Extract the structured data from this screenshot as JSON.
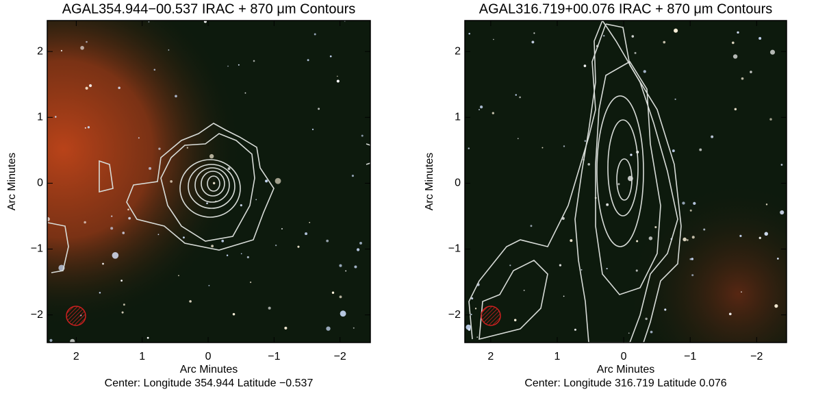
{
  "chart_data": [
    {
      "type": "image",
      "title": "AGAL354.944−00.537 IRAC + 870 μm Contours",
      "xlabel": "Arc Minutes",
      "ylabel": "Arc Minutes",
      "caption": "Center:  Longitude 354.944 Latitude −0.537",
      "xlim": [
        2.44,
        -2.46
      ],
      "ylim": [
        -2.42,
        2.47
      ],
      "xticks": [
        2,
        1,
        0,
        {
          "value": -1,
          "label": "−1"
        },
        {
          "value": -2,
          "label": "−2"
        }
      ],
      "yticks": [
        {
          "value": -2,
          "label": "−2"
        },
        {
          "value": -1,
          "label": "−1"
        },
        0,
        1,
        2
      ]
    },
    {
      "type": "image",
      "title": "AGAL316.719+00.076 IRAC + 870 μm Contours",
      "xlabel": "Arc Minutes",
      "ylabel": "Arc Minutes",
      "caption": "Center:  Longitude 316.719 Latitude 0.076",
      "xlim": [
        2.39,
        -2.45
      ],
      "ylim": [
        -2.42,
        2.47
      ],
      "xticks": [
        2,
        1,
        0,
        {
          "value": -1,
          "label": "−1"
        },
        {
          "value": -2,
          "label": "−2"
        }
      ],
      "yticks": [
        {
          "value": -2,
          "label": "−2"
        },
        {
          "value": -1,
          "label": "−1"
        },
        0,
        1,
        2
      ]
    }
  ]
}
